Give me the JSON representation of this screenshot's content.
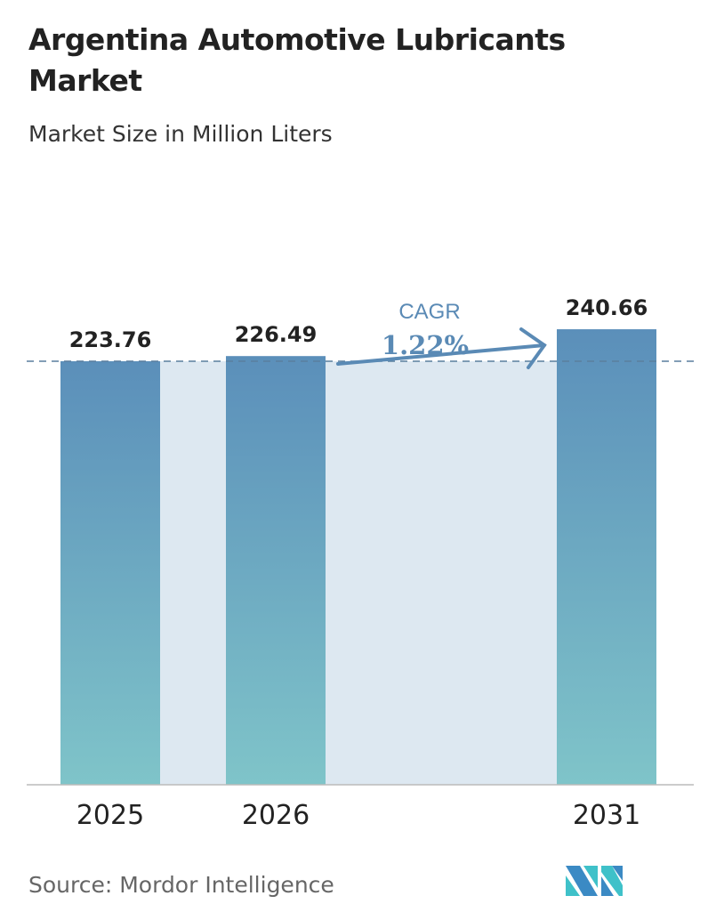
{
  "title": "Argentina Automotive Lubricants Market",
  "subtitle": "Market Size in Million Liters",
  "source": "Source:  Mordor Intelligence",
  "logo": "Mordor Intelligence logo",
  "colors": {
    "bar_top": "#5b8fba",
    "bar_bottom": "#7fc4c9",
    "band": "#dde8f1",
    "cagr": "#5a8ab5",
    "dashed": "#5a7f9e"
  },
  "chart_data": {
    "type": "bar",
    "categories": [
      "2025",
      "2026",
      "2031"
    ],
    "values": [
      223.76,
      226.49,
      240.66
    ],
    "data_labels": [
      "223.76",
      "226.49",
      "240.66"
    ],
    "ylim": [
      0,
      240.66
    ],
    "grid": false,
    "annotation": {
      "label": "CAGR",
      "value": "1.22%"
    }
  }
}
